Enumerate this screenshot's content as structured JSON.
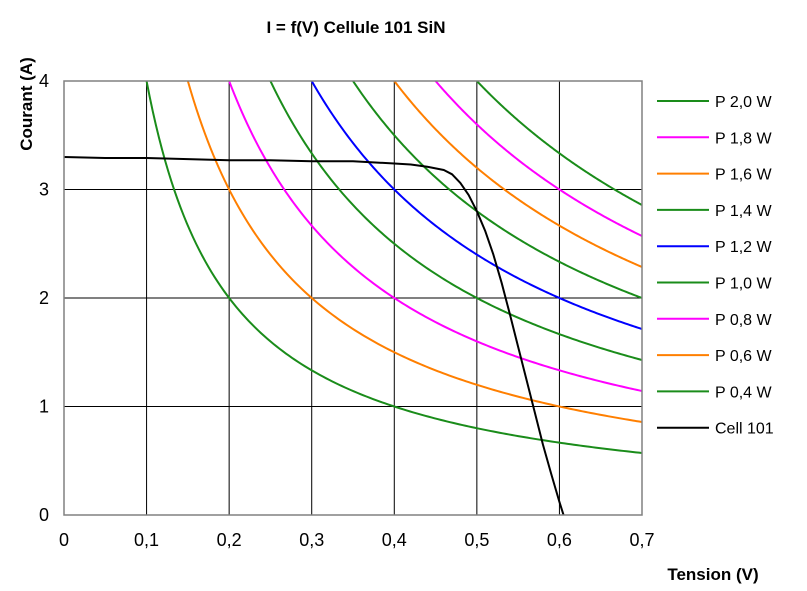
{
  "chart_data": {
    "type": "line",
    "title": "I = f(V) Cellule 101 SiN",
    "xlabel": "Tension (V)",
    "ylabel": "Courant (A)",
    "xlim": [
      0,
      0.7
    ],
    "ylim": [
      0,
      4
    ],
    "x_ticks": [
      "0",
      "0,1",
      "0,2",
      "0,3",
      "0,4",
      "0,5",
      "0,6",
      "0,7"
    ],
    "y_ticks": [
      "0",
      "1",
      "2",
      "3",
      "4"
    ],
    "grid": true,
    "legend_position": "right",
    "series": [
      {
        "name": "P 2,0 W",
        "kind": "power",
        "power": 2.0,
        "color": "#1a8c1a"
      },
      {
        "name": "P 1,8 W",
        "kind": "power",
        "power": 1.8,
        "color": "#ff00ff"
      },
      {
        "name": "P 1,6 W",
        "kind": "power",
        "power": 1.6,
        "color": "#ff7f00"
      },
      {
        "name": "P 1,4 W",
        "kind": "power",
        "power": 1.4,
        "color": "#1a8c1a"
      },
      {
        "name": "P 1,2 W",
        "kind": "power",
        "power": 1.2,
        "color": "#0000ff"
      },
      {
        "name": "P 1,0 W",
        "kind": "power",
        "power": 1.0,
        "color": "#1a8c1a"
      },
      {
        "name": "P 0,8 W",
        "kind": "power",
        "power": 0.8,
        "color": "#ff00ff"
      },
      {
        "name": "P 0,6 W",
        "kind": "power",
        "power": 0.6,
        "color": "#ff7f00"
      },
      {
        "name": "P 0,4 W",
        "kind": "power",
        "power": 0.4,
        "color": "#1a8c1a"
      },
      {
        "name": "Cell 101",
        "kind": "iv",
        "color": "#000000",
        "x": [
          0,
          0.05,
          0.1,
          0.15,
          0.2,
          0.25,
          0.3,
          0.35,
          0.4,
          0.42,
          0.44,
          0.46,
          0.47,
          0.48,
          0.49,
          0.5,
          0.51,
          0.52,
          0.53,
          0.54,
          0.55,
          0.56,
          0.57,
          0.58,
          0.59,
          0.6,
          0.605
        ],
        "y": [
          3.3,
          3.29,
          3.29,
          3.28,
          3.27,
          3.27,
          3.26,
          3.26,
          3.24,
          3.23,
          3.21,
          3.18,
          3.14,
          3.06,
          2.95,
          2.8,
          2.62,
          2.4,
          2.14,
          1.85,
          1.55,
          1.25,
          0.95,
          0.65,
          0.38,
          0.12,
          0.0
        ]
      }
    ]
  }
}
